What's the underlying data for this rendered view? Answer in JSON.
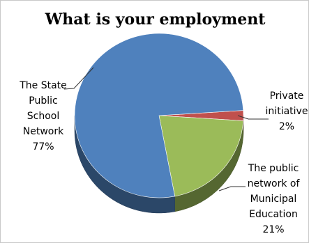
{
  "chart_data": {
    "type": "pie",
    "title": "What is your employment",
    "slices": [
      {
        "name": "The State Public School Network",
        "label_lines": [
          "The State",
          "Public",
          "School",
          "Network"
        ],
        "value": 77,
        "value_label": "77%",
        "color": "#4f81bd"
      },
      {
        "name": "Private initiative",
        "label_lines": [
          "Private",
          "initiative"
        ],
        "value": 2,
        "value_label": "2%",
        "color": "#c0504d"
      },
      {
        "name": "The public network of Municipal Education",
        "label_lines": [
          "The public",
          "network of",
          "Municipal",
          "Education"
        ],
        "value": 21,
        "value_label": "21%",
        "color": "#9bbb59"
      }
    ],
    "legend": "none",
    "style": "3d"
  }
}
